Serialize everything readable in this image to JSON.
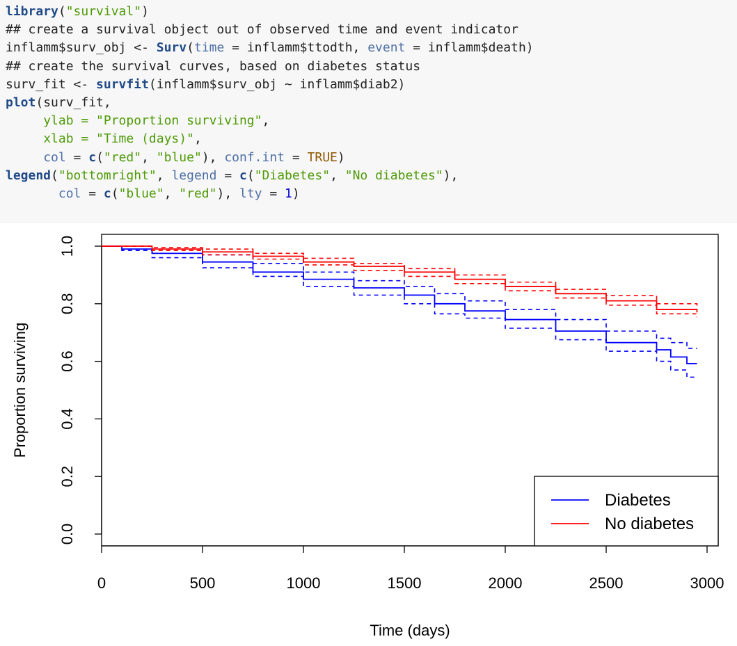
{
  "code": {
    "lines": [
      [
        {
          "t": "library",
          "c": "fn"
        },
        {
          "t": "(",
          "c": "plain"
        },
        {
          "t": "\"survival\"",
          "c": "str"
        },
        {
          "t": ")",
          "c": "plain"
        }
      ],
      [
        {
          "t": "## create a survival object out of observed time and event indicator",
          "c": "cmt"
        }
      ],
      [
        {
          "t": "inflamm$surv_obj <- ",
          "c": "plain"
        },
        {
          "t": "Surv",
          "c": "fn"
        },
        {
          "t": "(",
          "c": "plain"
        },
        {
          "t": "time",
          "c": "arg"
        },
        {
          "t": " = inflamm$ttodth, ",
          "c": "plain"
        },
        {
          "t": "event",
          "c": "arg"
        },
        {
          "t": " = inflamm$death)",
          "c": "plain"
        }
      ],
      [
        {
          "t": "## create the survival curves, based on diabetes status",
          "c": "cmt"
        }
      ],
      [
        {
          "t": "surv_fit <- ",
          "c": "plain"
        },
        {
          "t": "survfit",
          "c": "fn"
        },
        {
          "t": "(inflamm$surv_obj ~ inflamm$diab2)",
          "c": "plain"
        }
      ],
      [
        {
          "t": "plot",
          "c": "fn"
        },
        {
          "t": "(surv_fit,",
          "c": "plain"
        }
      ],
      [
        {
          "t": "     ",
          "c": "plain"
        },
        {
          "t": "ylab = \"Proportion surviving\"",
          "c": "str"
        },
        {
          "t": ",",
          "c": "plain"
        }
      ],
      [
        {
          "t": "     ",
          "c": "plain"
        },
        {
          "t": "xlab = \"Time (days)\"",
          "c": "str"
        },
        {
          "t": ",",
          "c": "plain"
        }
      ],
      [
        {
          "t": "     ",
          "c": "plain"
        },
        {
          "t": "col",
          "c": "arg"
        },
        {
          "t": " = ",
          "c": "plain"
        },
        {
          "t": "c",
          "c": "fn"
        },
        {
          "t": "(",
          "c": "plain"
        },
        {
          "t": "\"red\"",
          "c": "str"
        },
        {
          "t": ", ",
          "c": "plain"
        },
        {
          "t": "\"blue\"",
          "c": "str"
        },
        {
          "t": "), ",
          "c": "plain"
        },
        {
          "t": "conf.int",
          "c": "arg"
        },
        {
          "t": " = ",
          "c": "plain"
        },
        {
          "t": "TRUE",
          "c": "const"
        },
        {
          "t": ")",
          "c": "plain"
        }
      ],
      [
        {
          "t": "legend",
          "c": "fn"
        },
        {
          "t": "(",
          "c": "plain"
        },
        {
          "t": "\"bottomright\"",
          "c": "str"
        },
        {
          "t": ", ",
          "c": "plain"
        },
        {
          "t": "legend",
          "c": "arg"
        },
        {
          "t": " = ",
          "c": "plain"
        },
        {
          "t": "c",
          "c": "fn"
        },
        {
          "t": "(",
          "c": "plain"
        },
        {
          "t": "\"Diabetes\"",
          "c": "str"
        },
        {
          "t": ", ",
          "c": "plain"
        },
        {
          "t": "\"No diabetes\"",
          "c": "str"
        },
        {
          "t": "),",
          "c": "plain"
        }
      ],
      [
        {
          "t": "       ",
          "c": "plain"
        },
        {
          "t": "col",
          "c": "arg"
        },
        {
          "t": " = ",
          "c": "plain"
        },
        {
          "t": "c",
          "c": "fn"
        },
        {
          "t": "(",
          "c": "plain"
        },
        {
          "t": "\"blue\"",
          "c": "str"
        },
        {
          "t": ", ",
          "c": "plain"
        },
        {
          "t": "\"red\"",
          "c": "str"
        },
        {
          "t": "), ",
          "c": "plain"
        },
        {
          "t": "lty",
          "c": "arg"
        },
        {
          "t": " = ",
          "c": "plain"
        },
        {
          "t": "1",
          "c": "num"
        },
        {
          "t": ")",
          "c": "plain"
        }
      ]
    ]
  },
  "chart_data": {
    "type": "line",
    "xlabel": "Time (days)",
    "ylabel": "Proportion surviving",
    "xlim": [
      0,
      3000
    ],
    "ylim": [
      0.0,
      1.0
    ],
    "x_ticks": [
      0,
      500,
      1000,
      1500,
      2000,
      2500,
      3000
    ],
    "y_ticks": [
      0.0,
      0.2,
      0.4,
      0.6,
      0.8,
      1.0
    ],
    "y_tick_labels": [
      "0.0",
      "0.2",
      "0.4",
      "0.6",
      "0.8",
      "1.0"
    ],
    "x_tick_labels": [
      "0",
      "500",
      "1000",
      "1500",
      "2000",
      "2500",
      "3000"
    ],
    "grid": false,
    "legend_position": "bottom-right",
    "legend": [
      {
        "label": "Diabetes",
        "color": "#0000ff"
      },
      {
        "label": "No diabetes",
        "color": "#ff0000"
      }
    ],
    "series": [
      {
        "name": "Diabetes",
        "color": "#0000ff",
        "x": [
          0,
          100,
          250,
          500,
          750,
          1000,
          1250,
          1500,
          1650,
          1800,
          2000,
          2250,
          2500,
          2750,
          2820,
          2900,
          2950
        ],
        "y": [
          1.0,
          0.99,
          0.975,
          0.945,
          0.91,
          0.885,
          0.855,
          0.83,
          0.8,
          0.775,
          0.745,
          0.705,
          0.665,
          0.64,
          0.615,
          0.592,
          0.592
        ],
        "lower": [
          1.0,
          0.985,
          0.96,
          0.925,
          0.895,
          0.86,
          0.83,
          0.8,
          0.765,
          0.75,
          0.715,
          0.675,
          0.635,
          0.6,
          0.57,
          0.545,
          0.545
        ],
        "upper": [
          1.0,
          1.0,
          0.99,
          0.97,
          0.94,
          0.91,
          0.88,
          0.86,
          0.835,
          0.81,
          0.78,
          0.745,
          0.705,
          0.68,
          0.665,
          0.645,
          0.645
        ]
      },
      {
        "name": "No diabetes",
        "color": "#ff0000",
        "x": [
          0,
          250,
          500,
          750,
          1000,
          1250,
          1500,
          1750,
          2000,
          2250,
          2500,
          2750,
          2950
        ],
        "y": [
          1.0,
          0.99,
          0.98,
          0.965,
          0.945,
          0.93,
          0.91,
          0.885,
          0.86,
          0.835,
          0.81,
          0.78,
          0.77
        ],
        "lower": [
          1.0,
          0.985,
          0.97,
          0.955,
          0.935,
          0.915,
          0.895,
          0.87,
          0.845,
          0.82,
          0.795,
          0.765,
          0.753
        ],
        "upper": [
          1.0,
          0.995,
          0.99,
          0.975,
          0.958,
          0.94,
          0.922,
          0.9,
          0.875,
          0.85,
          0.828,
          0.8,
          0.787
        ]
      }
    ]
  }
}
